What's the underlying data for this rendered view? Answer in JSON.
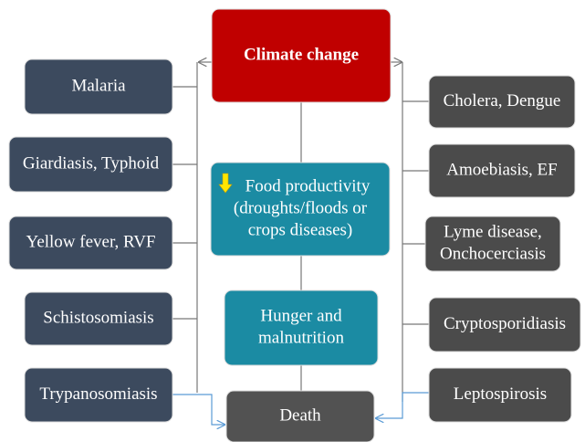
{
  "nodes": [
    {
      "lines": [
        "Climate change"
      ]
    },
    {
      "lines": [
        "Malaria"
      ]
    },
    {
      "lines": [
        "Giardiasis, Typhoid"
      ]
    },
    {
      "lines": [
        "Yellow fever, RVF"
      ]
    },
    {
      "lines": [
        "Schistosomiasis"
      ]
    },
    {
      "lines": [
        "Trypanosomiasis"
      ]
    },
    {
      "lines": [
        "Cholera, Dengue"
      ]
    },
    {
      "lines": [
        "Amoebiasis, EF"
      ]
    },
    {
      "lines": [
        "Lyme disease,",
        "Onchocerciasis"
      ]
    },
    {
      "lines": [
        "Cryptosporidiasis"
      ]
    },
    {
      "lines": [
        "Leptospirosis"
      ]
    },
    {
      "lines": [
        "Food productivity",
        "(droughts/floods or",
        "crops diseases)"
      ]
    },
    {
      "lines": [
        "Hunger and",
        "malnutrition"
      ]
    },
    {
      "lines": [
        "Death"
      ]
    }
  ]
}
